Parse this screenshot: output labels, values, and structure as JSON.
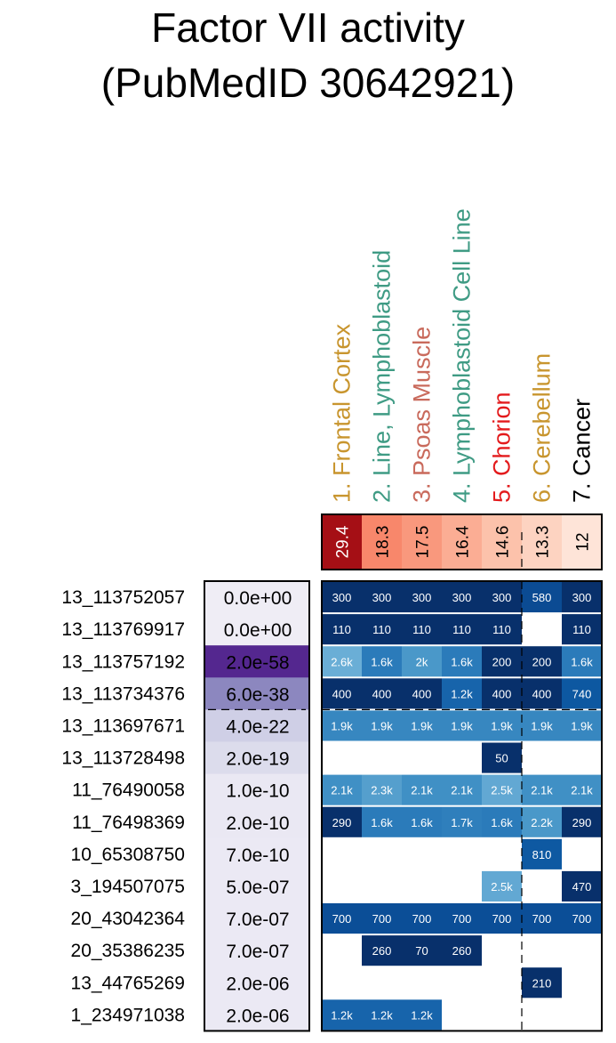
{
  "chart_data": {
    "type": "heatmap",
    "title_line1": "Factor VII activity",
    "title_line2": "(PubMedID 30642921)",
    "columns": [
      {
        "label": "1. Frontal Cortex",
        "color": "#c8952e",
        "score": "29.4",
        "score_bg": "#a50f15",
        "score_fg": "#ffffff"
      },
      {
        "label": "2. Line, Lymphoblastoid",
        "color": "#3f9b84",
        "score": "18.3",
        "score_bg": "#f8876b",
        "score_fg": "#000000"
      },
      {
        "label": "3. Psoas Muscle",
        "color": "#c96a5c",
        "score": "17.5",
        "score_bg": "#f9987d",
        "score_fg": "#000000"
      },
      {
        "label": "4. Lymphoblastoid Cell Line",
        "color": "#3f9b84",
        "score": "16.4",
        "score_bg": "#fbad94",
        "score_fg": "#000000"
      },
      {
        "label": "5. Chorion",
        "color": "#e31a1c",
        "score": "14.6",
        "score_bg": "#fcc2ab",
        "score_fg": "#000000"
      },
      {
        "label": "6. Cerebellum",
        "color": "#c8952e",
        "score": "13.3",
        "score_bg": "#fdd3c1",
        "score_fg": "#000000"
      },
      {
        "label": "7. Cancer",
        "color": "#000000",
        "score": "12",
        "score_bg": "#fee4d8",
        "score_fg": "#000000"
      }
    ],
    "rows": [
      {
        "snp": "13_113752057",
        "pval": "0.0e+00",
        "pval_bg": "#efedf5",
        "pval_fg": "#000000",
        "cells": [
          "300",
          "300",
          "300",
          "300",
          "300",
          "580",
          "300"
        ],
        "colors": [
          "#08306b",
          "#08306b",
          "#08306b",
          "#08306b",
          "#08306b",
          "#0b4b93",
          "#08306b"
        ]
      },
      {
        "snp": "13_113769917",
        "pval": "0.0e+00",
        "pval_bg": "#efedf5",
        "pval_fg": "#000000",
        "cells": [
          "110",
          "110",
          "110",
          "110",
          "110",
          "",
          "110"
        ],
        "colors": [
          "#08306b",
          "#08306b",
          "#08306b",
          "#08306b",
          "#08306b",
          "",
          "#08306b"
        ]
      },
      {
        "snp": "13_113757192",
        "pval": "2.0e-58",
        "pval_bg": "#54278f",
        "pval_fg": "#000000",
        "cells": [
          "2.6k",
          "1.6k",
          "2k",
          "1.6k",
          "200",
          "200",
          "1.6k"
        ],
        "colors": [
          "#6aaed6",
          "#2b7bba",
          "#4a98c9",
          "#2b7bba",
          "#08306b",
          "#08306b",
          "#2b7bba"
        ]
      },
      {
        "snp": "13_113734376",
        "pval": "6.0e-38",
        "pval_bg": "#8c87bf",
        "pval_fg": "#000000",
        "cells": [
          "400",
          "400",
          "400",
          "1.2k",
          "400",
          "400",
          "740"
        ],
        "colors": [
          "#08306b",
          "#08306b",
          "#08306b",
          "#1764ab",
          "#08306b",
          "#08306b",
          "#0d58a1"
        ]
      },
      {
        "snp": "13_113697671",
        "pval": "4.0e-22",
        "pval_bg": "#cfcfe6",
        "pval_fg": "#000000",
        "cells": [
          "1.9k",
          "1.9k",
          "1.9k",
          "1.9k",
          "1.9k",
          "1.9k",
          "1.9k"
        ],
        "colors": [
          "#3787c0",
          "#3787c0",
          "#3787c0",
          "#3787c0",
          "#3787c0",
          "#3787c0",
          "#3787c0"
        ]
      },
      {
        "snp": "13_113728498",
        "pval": "2.0e-19",
        "pval_bg": "#dcdcec",
        "pval_fg": "#000000",
        "cells": [
          "",
          "",
          "",
          "",
          "50",
          "",
          ""
        ],
        "colors": [
          "",
          "",
          "",
          "",
          "#08306b",
          "",
          ""
        ]
      },
      {
        "snp": "11_76490058",
        "pval": "1.0e-10",
        "pval_bg": "#eae8f3",
        "pval_fg": "#000000",
        "cells": [
          "2.1k",
          "2.3k",
          "2.1k",
          "2.1k",
          "2.5k",
          "2.1k",
          "2.1k"
        ],
        "colors": [
          "#4090c5",
          "#559fcd",
          "#4090c5",
          "#4090c5",
          "#62a8d3",
          "#4090c5",
          "#4090c5"
        ]
      },
      {
        "snp": "11_76498369",
        "pval": "2.0e-10",
        "pval_bg": "#eae8f3",
        "pval_fg": "#000000",
        "cells": [
          "290",
          "1.6k",
          "1.6k",
          "1.7k",
          "1.6k",
          "2.2k",
          "290"
        ],
        "colors": [
          "#08306b",
          "#2b7bba",
          "#2b7bba",
          "#2f7fbc",
          "#2b7bba",
          "#4a98c9",
          "#08306b"
        ]
      },
      {
        "snp": "10_65308750",
        "pval": "7.0e-10",
        "pval_bg": "#ebe9f4",
        "pval_fg": "#000000",
        "cells": [
          "",
          "",
          "",
          "",
          "",
          "810",
          ""
        ],
        "colors": [
          "",
          "",
          "",
          "",
          "",
          "#0e59a2",
          ""
        ]
      },
      {
        "snp": "3_194507075",
        "pval": "5.0e-07",
        "pval_bg": "#ebe9f4",
        "pval_fg": "#000000",
        "cells": [
          "",
          "",
          "",
          "",
          "2.5k",
          "",
          "470"
        ],
        "colors": [
          "",
          "",
          "",
          "",
          "#62a8d3",
          "",
          "#08306b"
        ]
      },
      {
        "snp": "20_43042364",
        "pval": "7.0e-07",
        "pval_bg": "#ebe9f4",
        "pval_fg": "#000000",
        "cells": [
          "700",
          "700",
          "700",
          "700",
          "700",
          "700",
          "700"
        ],
        "colors": [
          "#0b4e97",
          "#0b4e97",
          "#0b4e97",
          "#0b4e97",
          "#0b4e97",
          "#0b4e97",
          "#0b4e97"
        ]
      },
      {
        "snp": "20_35386235",
        "pval": "7.0e-07",
        "pval_bg": "#ebe9f4",
        "pval_fg": "#000000",
        "cells": [
          "",
          "260",
          "70",
          "260",
          "",
          "",
          ""
        ],
        "colors": [
          "",
          "#08306b",
          "#08306b",
          "#08306b",
          "",
          "",
          ""
        ]
      },
      {
        "snp": "13_44765269",
        "pval": "2.0e-06",
        "pval_bg": "#ebe9f4",
        "pval_fg": "#000000",
        "cells": [
          "",
          "",
          "",
          "",
          "",
          "210",
          ""
        ],
        "colors": [
          "",
          "",
          "",
          "",
          "",
          "#08306b",
          ""
        ]
      },
      {
        "snp": "1_234971038",
        "pval": "2.0e-06",
        "pval_bg": "#ebe9f4",
        "pval_fg": "#000000",
        "cells": [
          "1.2k",
          "1.2k",
          "1.2k",
          "",
          "",
          "",
          ""
        ],
        "colors": [
          "#1764ab",
          "#1764ab",
          "#1764ab",
          "",
          "",
          "",
          ""
        ]
      }
    ]
  }
}
